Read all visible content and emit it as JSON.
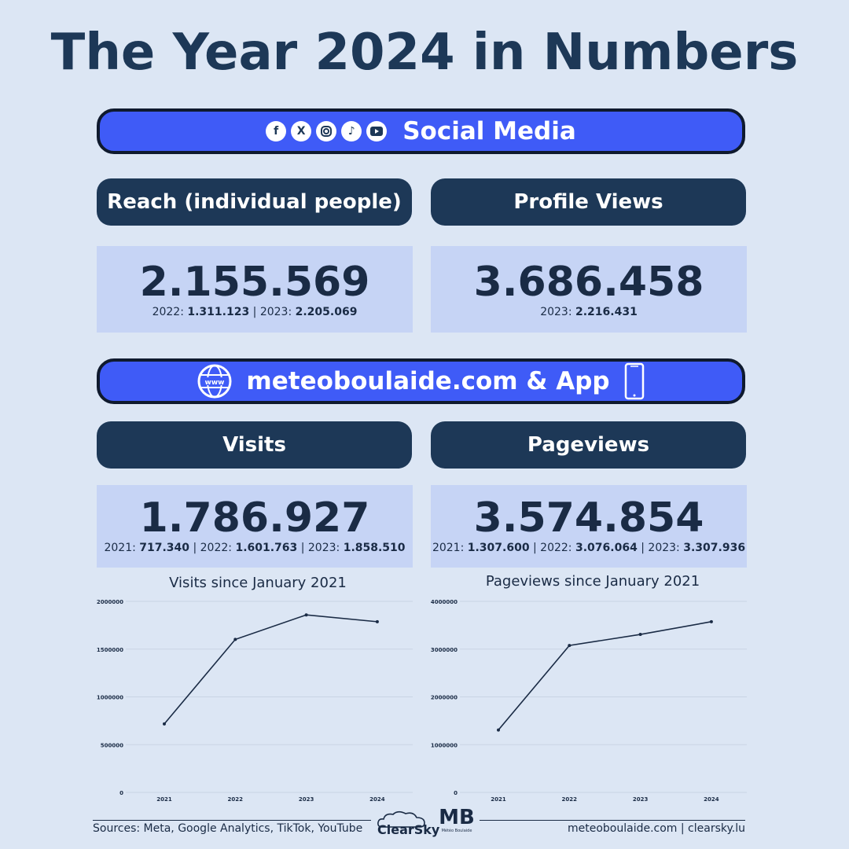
{
  "title": "The Year 2024 in Numbers",
  "social": {
    "label": "Social Media",
    "icons": [
      "facebook-icon",
      "x-icon",
      "instagram-icon",
      "tiktok-icon",
      "youtube-icon"
    ],
    "reach": {
      "label": "Reach (individual people)",
      "value": "2.155.569",
      "p1": "2022: ",
      "v1": "1.311.123",
      "sep": " | ",
      "p2": "2023: ",
      "v2": "2.205.069"
    },
    "profile": {
      "label": "Profile Views",
      "value": "3.686.458",
      "p1": "2023: ",
      "v1": "2.216.431"
    }
  },
  "web": {
    "label": "meteoboulaide.com & App",
    "visits": {
      "label": "Visits",
      "value": "1.786.927",
      "p1": "2021: ",
      "v1": "717.340",
      "p2": " | 2022: ",
      "v2": "1.601.763",
      "p3": " | 2023: ",
      "v3": "1.858.510"
    },
    "pageviews": {
      "label": "Pageviews",
      "value": "3.574.854",
      "p1": "2021: ",
      "v1": "1.307.600",
      "p2": " | 2022: ",
      "v2": "3.076.064",
      "p3": " | 2023: ",
      "v3": "3.307.936"
    }
  },
  "chart_data": [
    {
      "type": "line",
      "title": "Visits since January 2021",
      "categories": [
        "2021",
        "2022",
        "2023",
        "2024"
      ],
      "values": [
        717340,
        1601763,
        1858510,
        1786927
      ],
      "ylim": [
        0,
        2000000
      ],
      "yticks": [
        "0",
        "500000",
        "1000000",
        "1500000",
        "2000000"
      ],
      "grid": true,
      "color": "#1a2b45"
    },
    {
      "type": "line",
      "title": "Pageviews since January 2021",
      "categories": [
        "2021",
        "2022",
        "2023",
        "2024"
      ],
      "values": [
        1307600,
        3076064,
        3307936,
        3574854
      ],
      "ylim": [
        0,
        4000000
      ],
      "yticks": [
        "0",
        "1000000",
        "2000000",
        "3000000",
        "4000000"
      ],
      "grid": true,
      "color": "#1a2b45"
    }
  ],
  "footer": {
    "sources": "Sources: Meta, Google Analytics, TikTok, YouTube",
    "clearsky": "ClearSky",
    "mb": "MB",
    "mb_sub": "Météo Boulaide",
    "links": "meteoboulaide.com | clearsky.lu"
  }
}
